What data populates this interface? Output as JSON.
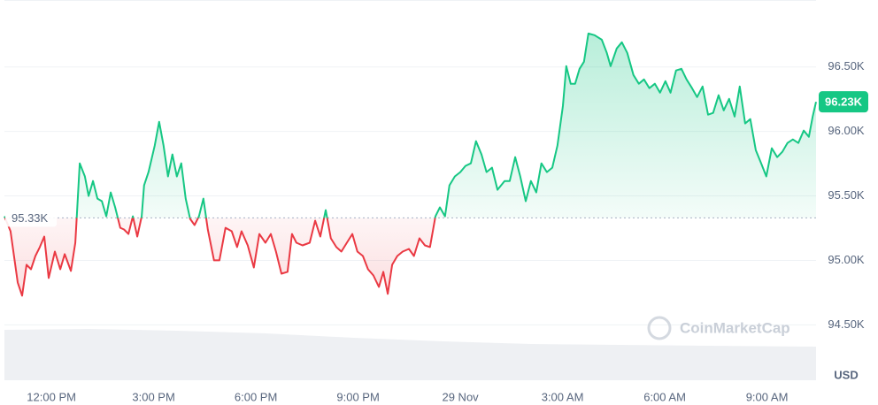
{
  "chart_data": {
    "type": "line",
    "x": [
      10.62,
      10.8,
      11.01,
      11.14,
      11.27,
      11.4,
      11.53,
      11.66,
      11.79,
      11.92,
      12.1,
      12.26,
      12.39,
      12.57,
      12.7,
      12.83,
      12.98,
      13.09,
      13.22,
      13.35,
      13.48,
      13.61,
      13.74,
      13.87,
      14.02,
      14.13,
      14.26,
      14.39,
      14.52,
      14.65,
      14.72,
      14.85,
      15.03,
      15.16,
      15.29,
      15.42,
      15.55,
      15.68,
      15.81,
      15.94,
      16.07,
      16.2,
      16.33,
      16.46,
      16.59,
      16.77,
      16.93,
      17.11,
      17.29,
      17.45,
      17.58,
      17.76,
      17.94,
      18.1,
      18.28,
      18.44,
      18.59,
      18.75,
      18.93,
      19.06,
      19.19,
      19.37,
      19.58,
      19.74,
      19.89,
      20.05,
      20.2,
      20.36,
      20.51,
      20.67,
      20.83,
      20.98,
      21.14,
      21.29,
      21.45,
      21.61,
      21.74,
      21.87,
      22.0,
      22.15,
      22.31,
      22.49,
      22.64,
      22.8,
      22.96,
      23.11,
      23.27,
      23.4,
      23.55,
      23.68,
      23.84,
      24.0,
      24.15,
      24.31,
      24.46,
      24.62,
      24.77,
      24.93,
      25.09,
      25.3,
      25.45,
      25.61,
      25.76,
      25.92,
      26.07,
      26.23,
      26.38,
      26.54,
      26.7,
      26.85,
      27.01,
      27.11,
      27.24,
      27.37,
      27.5,
      27.63,
      27.76,
      27.94,
      28.15,
      28.3,
      28.41,
      28.59,
      28.74,
      28.9,
      29.08,
      29.24,
      29.39,
      29.55,
      29.71,
      29.86,
      30.02,
      30.17,
      30.33,
      30.49,
      30.64,
      30.8,
      30.95,
      31.11,
      31.27,
      31.42,
      31.58,
      31.73,
      31.89,
      32.05,
      32.2,
      32.36,
      32.51,
      32.67,
      32.83,
      32.98,
      33.14,
      33.3,
      33.45,
      33.6,
      33.76,
      33.92,
      34.08,
      34.23,
      34.34,
      34.44
    ],
    "values": [
      95342,
      95226,
      94829,
      94726,
      94966,
      94931,
      95034,
      95103,
      95185,
      94863,
      95068,
      94931,
      95048,
      94918,
      95137,
      95753,
      95651,
      95500,
      95616,
      95479,
      95459,
      95342,
      95527,
      95411,
      95253,
      95240,
      95205,
      95342,
      95185,
      95342,
      95582,
      95685,
      95890,
      96075,
      95890,
      95651,
      95822,
      95651,
      95753,
      95479,
      95322,
      95274,
      95342,
      95479,
      95240,
      95000,
      95000,
      95253,
      95226,
      95103,
      95226,
      95116,
      94945,
      95205,
      95137,
      95205,
      95068,
      94897,
      94911,
      95205,
      95137,
      95116,
      95137,
      95308,
      95185,
      95390,
      95171,
      95103,
      95068,
      95137,
      95205,
      95068,
      95034,
      94931,
      94883,
      94794,
      94911,
      94740,
      94966,
      95034,
      95068,
      95089,
      95034,
      95171,
      95116,
      95103,
      95342,
      95411,
      95342,
      95582,
      95651,
      95685,
      95733,
      95753,
      95925,
      95822,
      95685,
      95719,
      95548,
      95616,
      95616,
      95801,
      95651,
      95459,
      95616,
      95527,
      95753,
      95685,
      95719,
      95890,
      96199,
      96507,
      96370,
      96370,
      96486,
      96541,
      96760,
      96747,
      96712,
      96610,
      96507,
      96644,
      96692,
      96610,
      96438,
      96370,
      96404,
      96336,
      96370,
      96301,
      96390,
      96301,
      96473,
      96486,
      96404,
      96336,
      96267,
      96349,
      96130,
      96144,
      96281,
      96164,
      96253,
      96116,
      96349,
      96062,
      96096,
      95856,
      95753,
      95651,
      95870,
      95801,
      95842,
      95911,
      95938,
      95911,
      96007,
      95959,
      96116,
      96230
    ],
    "up_color": "#16c784",
    "down_color": "#ea3943",
    "baseline": {
      "value": 95330,
      "label": "95.33K"
    },
    "current_price": {
      "value": 96230,
      "label": "96.23K"
    },
    "xlim": [
      10.62,
      34.44
    ],
    "xticks": [
      {
        "value": 12,
        "label": "12:00 PM"
      },
      {
        "value": 15,
        "label": "3:00 PM"
      },
      {
        "value": 18,
        "label": "6:00 PM"
      },
      {
        "value": 21,
        "label": "9:00 PM"
      },
      {
        "value": 24,
        "label": "29 Nov"
      },
      {
        "value": 27,
        "label": "3:00 AM"
      },
      {
        "value": 30,
        "label": "6:00 AM"
      },
      {
        "value": 33,
        "label": "9:00 AM"
      }
    ],
    "ylim": [
      94070,
      97020
    ],
    "yticks": [
      {
        "value": 94500,
        "label": "94.50K"
      },
      {
        "value": 95000,
        "label": "95.00K"
      },
      {
        "value": 95500,
        "label": "95.50K"
      },
      {
        "value": 96000,
        "label": "96.00K"
      },
      {
        "value": 96500,
        "label": "96.50K"
      }
    ],
    "y_unit": "USD",
    "watermark": "CoinMarketCap",
    "grid": true
  }
}
